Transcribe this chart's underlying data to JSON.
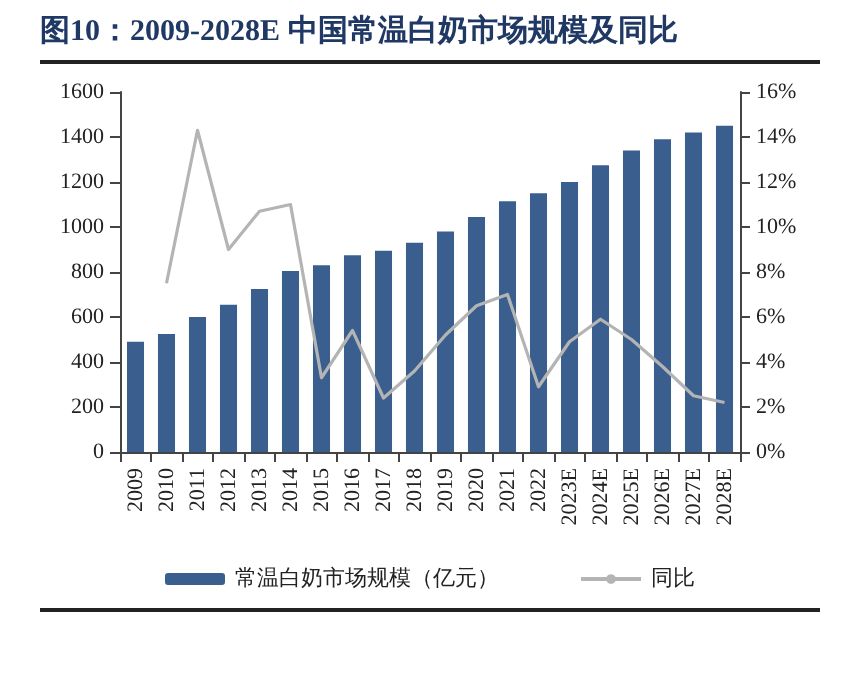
{
  "chart_data": {
    "type": "bar",
    "title": "图10：2009-2028E 中国常温白奶市场规模及同比",
    "categories": [
      "2009",
      "2010",
      "2011",
      "2012",
      "2013",
      "2014",
      "2015",
      "2016",
      "2017",
      "2018",
      "2019",
      "2020",
      "2021",
      "2022",
      "2023E",
      "2024E",
      "2025E",
      "2026E",
      "2027E",
      "2028E"
    ],
    "series": [
      {
        "name": "常温白奶市场规模（亿元）",
        "color": "#3a5f8f",
        "values": [
          490,
          525,
          600,
          655,
          725,
          805,
          830,
          875,
          895,
          930,
          980,
          1045,
          1115,
          1150,
          1200,
          1275,
          1340,
          1390,
          1420,
          1450
        ]
      },
      {
        "name": "同比",
        "type": "line",
        "axis": "y2",
        "color": "#b4b4b4",
        "values": [
          null,
          7.5,
          14.3,
          9.0,
          10.7,
          11.0,
          3.3,
          5.4,
          2.4,
          3.6,
          5.2,
          6.5,
          7.0,
          2.9,
          4.9,
          5.9,
          5.0,
          3.8,
          2.5,
          2.2
        ]
      }
    ],
    "ylim": [
      0,
      1600
    ],
    "yticks": [
      0,
      200,
      400,
      600,
      800,
      1000,
      1200,
      1400,
      1600
    ],
    "y2lim": [
      0,
      16
    ],
    "y2ticks": [
      {
        "value": 0,
        "label": "0%"
      },
      {
        "value": 2,
        "label": "2%"
      },
      {
        "value": 4,
        "label": "4%"
      },
      {
        "value": 6,
        "label": "6%"
      },
      {
        "value": 8,
        "label": "8%"
      },
      {
        "value": 10,
        "label": "10%"
      },
      {
        "value": 12,
        "label": "12%"
      },
      {
        "value": 14,
        "label": "14%"
      },
      {
        "value": 16,
        "label": "16%"
      }
    ],
    "legend": "bottom",
    "grid": false,
    "marker": "none",
    "line_style": "solid"
  }
}
